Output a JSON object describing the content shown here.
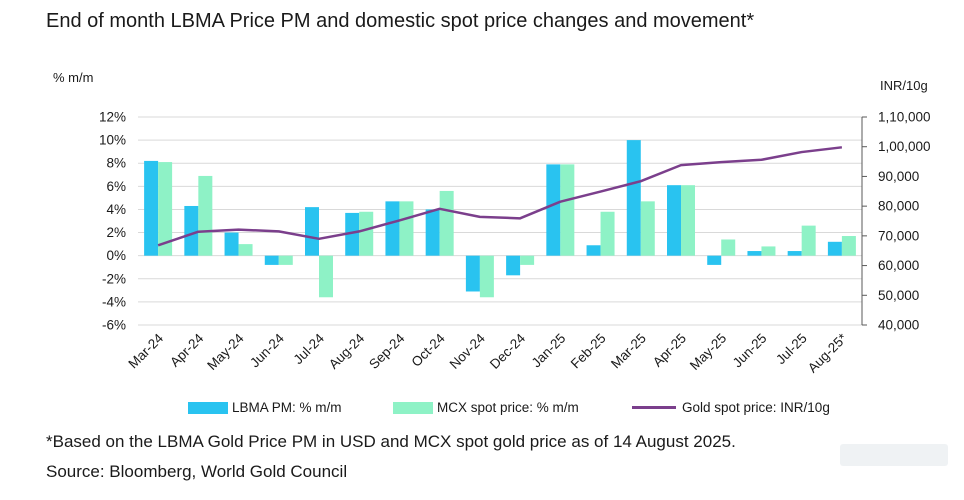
{
  "title": "End of month LBMA Price PM and domestic spot price changes and movement*",
  "footnote": "*Based on the LBMA Gold Price PM in USD and MCX spot gold price as of 14 August 2025.",
  "source": "Source: Bloomberg, World Gold Council",
  "colors": {
    "lbma": "#29c3f0",
    "mcx": "#8ef2c6",
    "gold_line": "#7b3f8c",
    "grid": "#d9d9d9",
    "axis": "#595959"
  },
  "chart_data": {
    "type": "bar",
    "ylabel": "% m/m",
    "y2label": "INR/10g",
    "ylim": [
      -6,
      12
    ],
    "y2lim": [
      40000,
      110000
    ],
    "yticks": [
      "12%",
      "10%",
      "8%",
      "6%",
      "4%",
      "2%",
      "0%",
      "-2%",
      "-4%",
      "-6%"
    ],
    "y2ticks": [
      "1,10,000",
      "1,00,000",
      "90,000",
      "80,000",
      "70,000",
      "60,000",
      "50,000",
      "40,000"
    ],
    "grid": true,
    "legend_position": "bottom",
    "categories": [
      "Mar-24",
      "Apr-24",
      "May-24",
      "Jun-24",
      "Jul-24",
      "Aug-24",
      "Sep-24",
      "Oct-24",
      "Nov-24",
      "Dec-24",
      "Jan-25",
      "Feb-25",
      "Mar-25",
      "Apr-25",
      "May-25",
      "Jun-25",
      "Jul-25",
      "Aug-25*"
    ],
    "series": [
      {
        "name": "LBMA PM: % m/m",
        "type": "bar",
        "axis": "left",
        "values": [
          8.2,
          4.3,
          2.0,
          -0.8,
          4.2,
          3.7,
          4.7,
          4.0,
          -3.1,
          -1.7,
          7.9,
          0.9,
          10.0,
          6.1,
          -0.8,
          0.4,
          0.4,
          1.2
        ]
      },
      {
        "name": "MCX spot price: % m/m",
        "type": "bar",
        "axis": "left",
        "values": [
          8.1,
          6.9,
          1.0,
          -0.8,
          -3.6,
          3.8,
          4.7,
          5.6,
          -3.6,
          -0.8,
          7.9,
          3.8,
          4.7,
          6.1,
          1.4,
          0.8,
          2.6,
          1.7
        ]
      },
      {
        "name": "Gold spot price: INR/10g",
        "type": "line",
        "axis": "right",
        "values": [
          66800,
          71400,
          72100,
          71500,
          69000,
          71500,
          75200,
          79100,
          76400,
          75900,
          81500,
          84900,
          88400,
          93800,
          94800,
          95600,
          98200,
          99800
        ]
      }
    ]
  }
}
